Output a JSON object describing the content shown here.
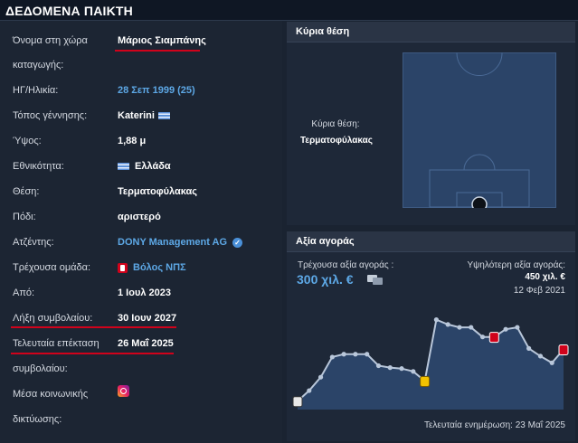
{
  "header": {
    "title": "ΔΕΔΟΜΕΝΑ ΠΑΙΚΤΗ"
  },
  "player": {
    "native_name_label_1": "Όνομα στη χώρα",
    "native_name_label_2": "καταγωγής:",
    "native_name_value": "Μάριος Σιαμπάνης",
    "dob_label": "ΗΓ/Ηλικία:",
    "dob_value": "28 Σεπ 1999 (25)",
    "birthplace_label": "Τόπος γέννησης:",
    "birthplace_value": "Katerini",
    "height_label": "Ύψος:",
    "height_value": "1,88 μ",
    "nationality_label": "Εθνικότητα:",
    "nationality_value": "Ελλάδα",
    "position_label": "Θέση:",
    "position_value": "Τερματοφύλακας",
    "foot_label": "Πόδι:",
    "foot_value": "αριστερό",
    "agent_label": "Ατζέντης:",
    "agent_value": "DONY Management AG",
    "club_label": "Τρέχουσα ομάδα:",
    "club_value": "Βόλος ΝΠΣ",
    "joined_label": "Από:",
    "joined_value": "1 Ιουλ 2023",
    "contract_label": "Λήξη συμβολαίου:",
    "contract_value": "30 Ιουν 2027",
    "extension_label_1": "Τελευταία επέκταση",
    "extension_label_2": "συμβολαίου:",
    "extension_value": "26 Μαΐ 2025",
    "social_label_1": "Μέσα κοινωνικής",
    "social_label_2": "δικτύωσης:"
  },
  "main_position": {
    "panel_title": "Κύρια θέση",
    "label": "Κύρια θέση:",
    "value": "Τερματοφύλακας"
  },
  "market_value": {
    "panel_title": "Αξία αγοράς",
    "current_label": "Τρέχουσα αξία αγοράς :",
    "current_value": "300 χιλ. €",
    "highest_label": "Υψηλότερη αξία αγοράς:",
    "highest_value": "450 χιλ. €",
    "highest_date": "12 Φεβ 2021",
    "last_update": "Τελευταία ενημέρωση: 23 Μαΐ 2025"
  },
  "colors": {
    "accent_underline": "#d0021b",
    "link": "#5da8e6",
    "pitch": "#2b4468",
    "chart_area": "#2b4468",
    "chart_line": "#b9c7da"
  },
  "icons": [
    "flag-greece-icon",
    "verified-check-icon",
    "club-badge-icon",
    "instagram-icon",
    "compare-icon"
  ],
  "chart_data": {
    "type": "area",
    "title": "",
    "xlabel": "",
    "ylabel": "",
    "y_unit": "χιλ. €",
    "ylim": [
      0,
      500
    ],
    "grid": false,
    "points": [
      25,
      80,
      150,
      255,
      270,
      270,
      270,
      210,
      200,
      195,
      180,
      130,
      450,
      425,
      410,
      410,
      360,
      360,
      400,
      410,
      300,
      260,
      225,
      295
    ]
  }
}
